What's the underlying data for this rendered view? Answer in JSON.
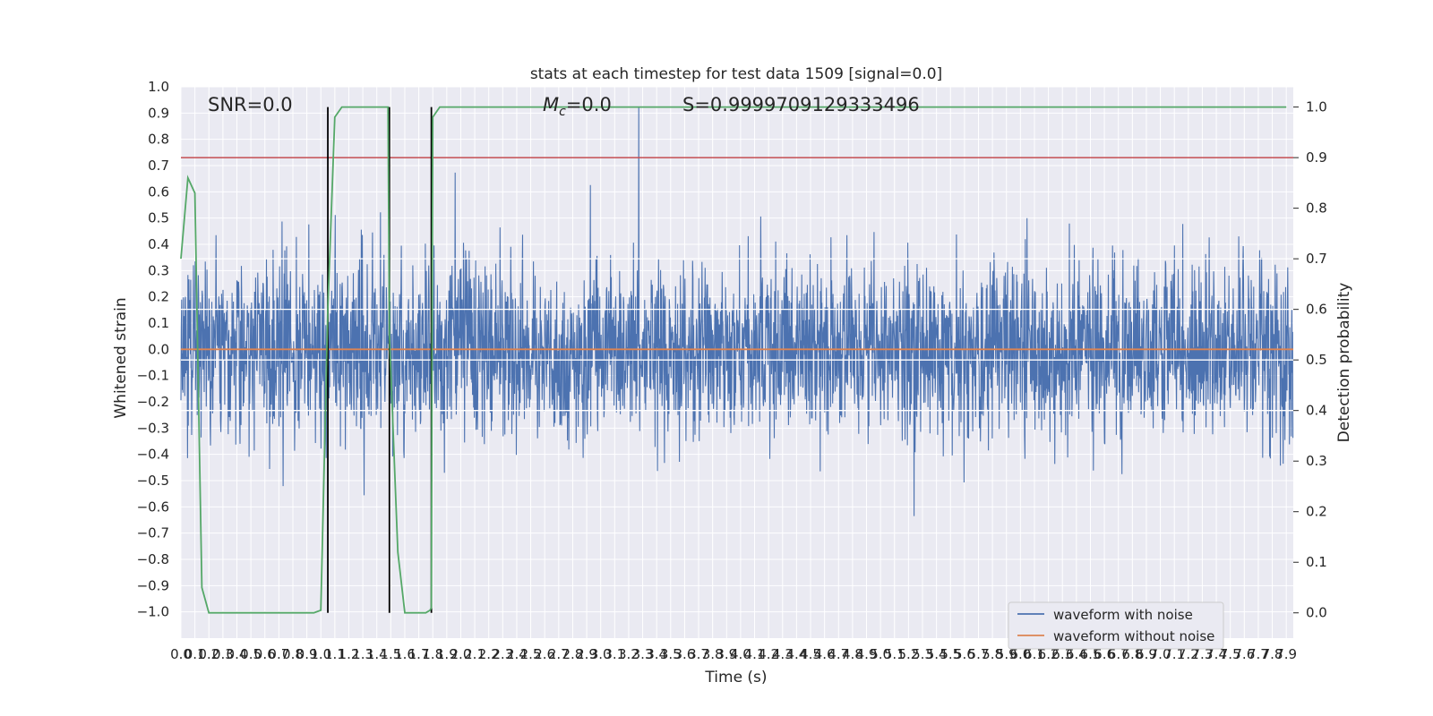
{
  "chart_data": {
    "type": "line",
    "title": "stats at each timestep for test data 1509 [signal=0.0]",
    "xlabel": "Time (s)",
    "ylabel": "Whitened strain",
    "y2label": "Detection probability",
    "xlim": [
      0.0,
      7.95
    ],
    "ylim": [
      -1.1,
      1.0
    ],
    "y2lim": [
      -0.05,
      1.04
    ],
    "x_ticks": [
      0.0,
      0.1,
      0.2,
      0.3,
      0.4,
      0.5,
      0.6,
      0.7,
      0.8,
      0.9,
      1.0,
      1.1,
      1.2,
      1.3,
      1.4,
      1.5,
      1.6,
      1.7,
      1.8,
      1.9,
      2.0,
      2.1,
      2.2,
      2.3,
      2.4,
      2.5,
      2.6,
      2.7,
      2.8,
      2.9,
      3.0,
      3.1,
      3.2,
      3.3,
      3.4,
      3.5,
      3.6,
      3.7,
      3.8,
      3.9,
      4.0,
      4.1,
      4.2,
      4.3,
      4.4,
      4.5,
      4.6,
      4.7,
      4.8,
      4.9,
      5.0,
      5.1,
      5.2,
      5.3,
      5.4,
      5.5,
      5.6,
      5.7,
      5.8,
      5.9,
      6.0,
      6.1,
      6.2,
      6.3,
      6.4,
      6.5,
      6.6,
      6.7,
      6.8,
      6.9,
      7.0,
      7.1,
      7.2,
      7.3,
      7.4,
      7.5,
      7.6,
      7.7,
      7.8,
      7.9
    ],
    "y_ticks": [
      -1.0,
      -0.9,
      -0.8,
      -0.7,
      -0.6,
      -0.5,
      -0.4,
      -0.3,
      -0.2,
      -0.1,
      0.0,
      0.1,
      0.2,
      0.3,
      0.4,
      0.5,
      0.6,
      0.7,
      0.8,
      0.9,
      1.0
    ],
    "y2_ticks": [
      0.0,
      0.1,
      0.2,
      0.3,
      0.4,
      0.5,
      0.6,
      0.7,
      0.8,
      0.9,
      1.0
    ],
    "grid": true,
    "annotations": {
      "snr": "SNR=0.0",
      "mc": "=0.0",
      "mc_symbol": "M",
      "mc_sub": "c",
      "s": "S=0.9999709129333496"
    },
    "threshold": 0.9,
    "vertical_lines_x": [
      1.05,
      1.49,
      1.79
    ],
    "series": [
      {
        "name": "waveform with noise",
        "color": "#4c72b0",
        "values_summary": "noise in approx [-1.0, 0.92]"
      },
      {
        "name": "waveform without noise",
        "color": "#dd8452",
        "values": [
          0.0
        ]
      },
      {
        "name": "Detection probability",
        "color": "#55a868",
        "x": [
          0.0,
          0.05,
          0.1,
          0.15,
          0.2,
          0.25,
          0.3,
          0.35,
          0.4,
          0.45,
          0.5,
          0.55,
          0.6,
          0.65,
          0.7,
          0.75,
          0.8,
          0.85,
          0.9,
          0.95,
          1.0,
          1.05,
          1.1,
          1.15,
          1.2,
          1.25,
          1.3,
          1.35,
          1.4,
          1.45,
          1.48,
          1.49,
          1.55,
          1.6,
          1.65,
          1.7,
          1.75,
          1.78,
          1.79,
          1.8,
          1.85,
          1.9,
          2.0,
          2.5,
          3.0,
          4.0,
          5.0,
          6.0,
          7.0,
          7.9
        ],
        "values": [
          0.7,
          0.86,
          0.83,
          0.05,
          0.0,
          0.0,
          0.0,
          0.0,
          0.0,
          0.0,
          0.0,
          0.0,
          0.0,
          0.0,
          0.0,
          0.0,
          0.0,
          0.0,
          0.0,
          0.0,
          0.005,
          0.6,
          0.98,
          1.0,
          1.0,
          1.0,
          1.0,
          1.0,
          1.0,
          1.0,
          1.0,
          0.55,
          0.12,
          0.0,
          0.0,
          0.0,
          0.0,
          0.005,
          0.01,
          0.98,
          1.0,
          1.0,
          1.0,
          1.0,
          1.0,
          1.0,
          1.0,
          1.0,
          1.0,
          1.0
        ]
      },
      {
        "name": "threshold",
        "color": "#c44e52",
        "values": [
          0.9
        ]
      }
    ],
    "legend": {
      "placement": "lower-right",
      "entries": [
        "waveform with noise",
        "waveform without noise"
      ]
    },
    "colors": {
      "background": "#eaeaf2",
      "grid": "#ffffff",
      "noise": "#4c72b0",
      "clean": "#dd8452",
      "prob": "#55a868",
      "threshold": "#c44e52",
      "vlines": "#000000"
    }
  }
}
